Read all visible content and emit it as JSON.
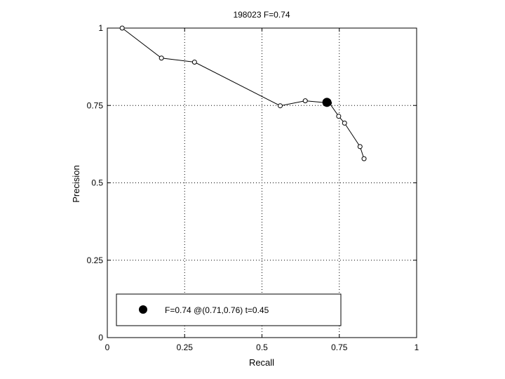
{
  "chart_data": {
    "type": "line",
    "title": "198023 F=0.74",
    "xlabel": "Recall",
    "ylabel": "Precision",
    "xlim": [
      0,
      1
    ],
    "ylim": [
      0,
      1
    ],
    "grid": true,
    "x_ticks": [
      0,
      0.25,
      0.5,
      0.75,
      1
    ],
    "y_ticks": [
      0,
      0.25,
      0.5,
      0.75,
      1
    ],
    "x_tick_labels": [
      "0",
      "0.25",
      "0.5",
      "0.75",
      "1"
    ],
    "y_tick_labels": [
      "0",
      "0.25",
      "0.5",
      "0.75",
      "1"
    ],
    "series": [
      {
        "points": [
          {
            "x": 0.048,
            "y": 1.0
          },
          {
            "x": 0.175,
            "y": 0.903
          },
          {
            "x": 0.282,
            "y": 0.89
          },
          {
            "x": 0.559,
            "y": 0.749
          },
          {
            "x": 0.64,
            "y": 0.765
          },
          {
            "x": 0.718,
            "y": 0.758
          },
          {
            "x": 0.748,
            "y": 0.715
          },
          {
            "x": 0.767,
            "y": 0.693
          },
          {
            "x": 0.817,
            "y": 0.617
          },
          {
            "x": 0.83,
            "y": 0.578
          }
        ]
      }
    ],
    "best_point": {
      "x": 0.71,
      "y": 0.76
    },
    "legend": {
      "text": "F=0.74 @(0.71,0.76) t=0.45",
      "placement": "bottom-left"
    }
  }
}
